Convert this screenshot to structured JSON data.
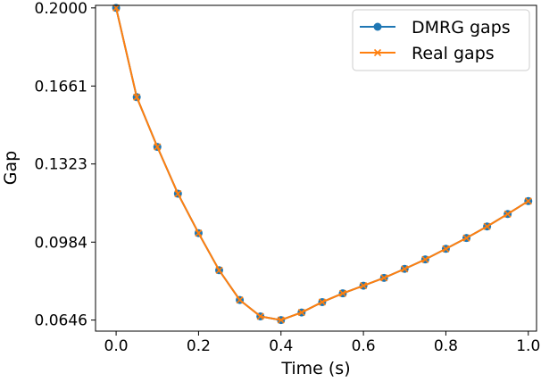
{
  "chart_data": {
    "type": "line",
    "xlabel": "Time (s)",
    "ylabel": "Gap",
    "xlim": [
      -0.05,
      1.02
    ],
    "ylim": [
      0.0598,
      0.2011
    ],
    "xticks": [
      0.0,
      0.2,
      0.4,
      0.6,
      0.8,
      1.0
    ],
    "xtick_labels": [
      "0.0",
      "0.2",
      "0.4",
      "0.6",
      "0.8",
      "1.0"
    ],
    "yticks": [
      0.2,
      0.1661,
      0.1323,
      0.0984,
      0.0646
    ],
    "ytick_labels": [
      "0.2000",
      "0.1661",
      "0.1323",
      "0.0984",
      "0.0646"
    ],
    "grid": false,
    "legend_position": "top-right",
    "x": [
      0.0,
      0.05,
      0.1,
      0.15,
      0.2,
      0.25,
      0.3,
      0.35,
      0.4,
      0.45,
      0.5,
      0.55,
      0.6,
      0.65,
      0.7,
      0.75,
      0.8,
      0.85,
      0.9,
      0.95,
      1.0
    ],
    "series": [
      {
        "name": "DMRG gaps",
        "marker": "circle",
        "color": "#1f77b4",
        "values": [
          0.2,
          0.1613,
          0.1397,
          0.1194,
          0.1023,
          0.0862,
          0.0733,
          0.0662,
          0.0646,
          0.0679,
          0.0724,
          0.0762,
          0.0795,
          0.0829,
          0.0868,
          0.0909,
          0.0955,
          0.1002,
          0.1052,
          0.1106,
          0.1162
        ]
      },
      {
        "name": "Real gaps",
        "marker": "x",
        "color": "#ff7f0e",
        "values": [
          0.2,
          0.1613,
          0.1397,
          0.1194,
          0.1023,
          0.0862,
          0.0733,
          0.0662,
          0.0646,
          0.0679,
          0.0724,
          0.0762,
          0.0795,
          0.0829,
          0.0868,
          0.0909,
          0.0955,
          0.1002,
          0.1052,
          0.1106,
          0.1162
        ]
      }
    ]
  }
}
